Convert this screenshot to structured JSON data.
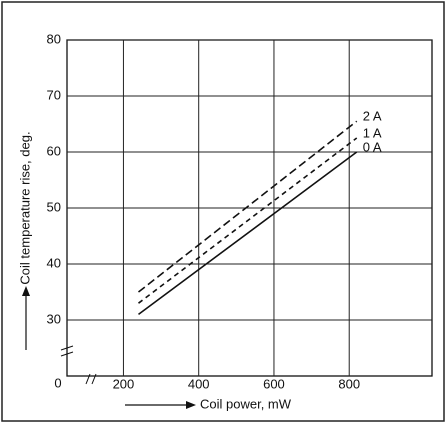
{
  "chart_data": {
    "type": "line",
    "x_label": "Coil power, mW",
    "y_label": "Coil temperature rise, deg.",
    "origin_label": "0",
    "xlim": [
      50,
      1020
    ],
    "xticks": [
      200,
      400,
      600,
      800
    ],
    "ylim": [
      20,
      80
    ],
    "yticks": [
      30,
      40,
      50,
      60,
      70,
      80
    ],
    "grid": true,
    "x": [
      240,
      820
    ],
    "series": [
      {
        "name": "2 A",
        "color": "#111111",
        "dash": "8 4",
        "values": [
          35,
          65.5
        ]
      },
      {
        "name": "1 A",
        "color": "#111111",
        "dash": "5 4",
        "values": [
          33,
          62.5
        ]
      },
      {
        "name": "0 A",
        "color": "#111111",
        "dash": "",
        "values": [
          31,
          60
        ]
      }
    ]
  }
}
